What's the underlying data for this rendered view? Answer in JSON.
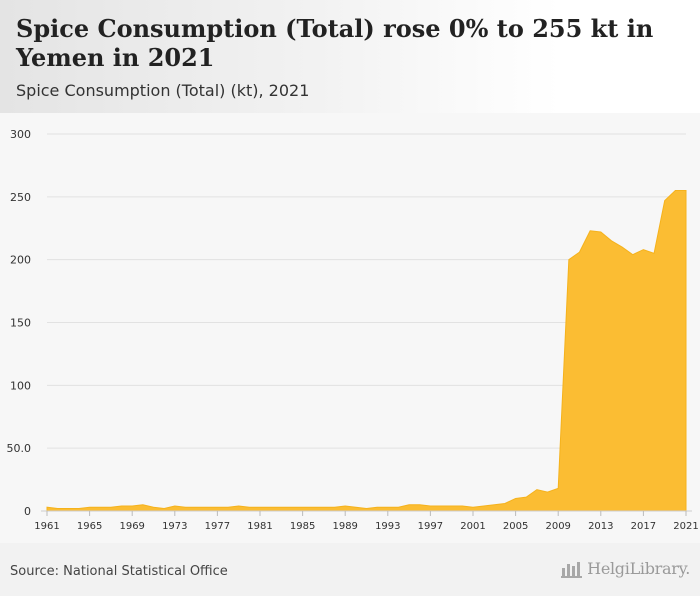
{
  "header": {
    "title": "Spice Consumption (Total) rose 0% to 255 kt in Yemen in 2021",
    "subtitle": "Spice Consumption (Total) (kt), 2021"
  },
  "footer": {
    "source": "Source: National Statistical Office",
    "brand": "HelgiLibrary."
  },
  "colors": {
    "area": "#fbbd33",
    "area_stroke": "#f5b21c",
    "grid": "#e2e2e2",
    "axis_text": "#333333"
  },
  "chart_data": {
    "type": "area",
    "title": "Spice Consumption (Total) rose 0% to 255 kt in Yemen in 2021",
    "subtitle": "Spice Consumption (Total) (kt), 2021",
    "xlabel": "",
    "ylabel": "",
    "xlim": [
      1961,
      2021
    ],
    "ylim": [
      0,
      300
    ],
    "grid": true,
    "y_ticks": [
      0,
      50,
      100,
      150,
      200,
      250,
      300
    ],
    "y_tick_labels": [
      "0",
      "50.0",
      "100",
      "150",
      "200",
      "250",
      "300"
    ],
    "x_ticks": [
      1961,
      1965,
      1969,
      1973,
      1977,
      1981,
      1985,
      1989,
      1993,
      1997,
      2001,
      2005,
      2009,
      2013,
      2017,
      2021
    ],
    "x_tick_labels": [
      "1961",
      "1965",
      "1969",
      "1973",
      "1977",
      "1981",
      "1985",
      "1989",
      "1993",
      "1997",
      "2001",
      "2005",
      "2009",
      "2013",
      "2017",
      "2021"
    ],
    "series": [
      {
        "name": "Spice Consumption (Total) (kt)",
        "x": [
          1961,
          1962,
          1963,
          1964,
          1965,
          1966,
          1967,
          1968,
          1969,
          1970,
          1971,
          1972,
          1973,
          1974,
          1975,
          1976,
          1977,
          1978,
          1979,
          1980,
          1981,
          1982,
          1983,
          1984,
          1985,
          1986,
          1987,
          1988,
          1989,
          1990,
          1991,
          1992,
          1993,
          1994,
          1995,
          1996,
          1997,
          1998,
          1999,
          2000,
          2001,
          2002,
          2003,
          2004,
          2005,
          2006,
          2007,
          2008,
          2009,
          2010,
          2011,
          2012,
          2013,
          2014,
          2015,
          2016,
          2017,
          2018,
          2019,
          2020,
          2021
        ],
        "values": [
          3,
          2,
          2,
          2,
          3,
          3,
          3,
          4,
          4,
          5,
          3,
          2,
          4,
          3,
          3,
          3,
          3,
          3,
          4,
          3,
          3,
          3,
          3,
          3,
          3,
          3,
          3,
          3,
          4,
          3,
          2,
          3,
          3,
          3,
          5,
          5,
          4,
          4,
          4,
          4,
          3,
          4,
          5,
          6,
          10,
          11,
          17,
          15,
          18,
          200,
          206,
          223,
          222,
          215,
          210,
          204,
          208,
          205,
          247,
          255,
          255
        ]
      }
    ]
  }
}
